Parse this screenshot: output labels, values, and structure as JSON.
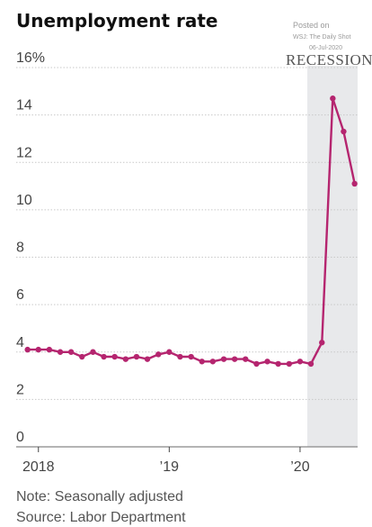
{
  "header": {
    "title": "Unemployment rate"
  },
  "watermark": {
    "line1": "Posted on",
    "line2": "WSJ: The Daily Shot",
    "line3": "06-Jul-2020"
  },
  "footer": {
    "note": "Note: Seasonally adjusted",
    "source": "Source: Labor Department"
  },
  "chart_data": {
    "type": "line",
    "ylabel_unit": "%",
    "ylim": [
      0,
      16
    ],
    "yticks": [
      0,
      2,
      4,
      6,
      8,
      10,
      12,
      14,
      16
    ],
    "ytick_labels": [
      "0",
      "2",
      "4",
      "6",
      "8",
      "10",
      "12",
      "14",
      "16%"
    ],
    "xticks": [
      {
        "x": 2018.0,
        "label": "2018"
      },
      {
        "x": 2019.0,
        "label": "’19"
      },
      {
        "x": 2020.0,
        "label": "’20"
      }
    ],
    "grid": true,
    "recession": {
      "start": 2020.083,
      "end": 2020.45,
      "label": "RECESSION",
      "color": "#e8e9eb"
    },
    "series": [
      {
        "color": "#b5256f",
        "points": [
          {
            "x": 2017.917,
            "y": 4.1
          },
          {
            "x": 2018.0,
            "y": 4.1
          },
          {
            "x": 2018.083,
            "y": 4.1
          },
          {
            "x": 2018.167,
            "y": 4.0
          },
          {
            "x": 2018.25,
            "y": 4.0
          },
          {
            "x": 2018.333,
            "y": 3.8
          },
          {
            "x": 2018.417,
            "y": 4.0
          },
          {
            "x": 2018.5,
            "y": 3.8
          },
          {
            "x": 2018.583,
            "y": 3.8
          },
          {
            "x": 2018.667,
            "y": 3.7
          },
          {
            "x": 2018.75,
            "y": 3.8
          },
          {
            "x": 2018.833,
            "y": 3.7
          },
          {
            "x": 2018.917,
            "y": 3.9
          },
          {
            "x": 2019.0,
            "y": 4.0
          },
          {
            "x": 2019.083,
            "y": 3.8
          },
          {
            "x": 2019.167,
            "y": 3.8
          },
          {
            "x": 2019.25,
            "y": 3.6
          },
          {
            "x": 2019.333,
            "y": 3.6
          },
          {
            "x": 2019.417,
            "y": 3.7
          },
          {
            "x": 2019.5,
            "y": 3.7
          },
          {
            "x": 2019.583,
            "y": 3.7
          },
          {
            "x": 2019.667,
            "y": 3.5
          },
          {
            "x": 2019.75,
            "y": 3.6
          },
          {
            "x": 2019.833,
            "y": 3.5
          },
          {
            "x": 2019.917,
            "y": 3.5
          },
          {
            "x": 2020.0,
            "y": 3.6
          },
          {
            "x": 2020.083,
            "y": 3.5
          },
          {
            "x": 2020.167,
            "y": 4.4
          },
          {
            "x": 2020.25,
            "y": 14.7
          },
          {
            "x": 2020.333,
            "y": 13.3
          },
          {
            "x": 2020.417,
            "y": 11.1
          }
        ]
      }
    ]
  }
}
